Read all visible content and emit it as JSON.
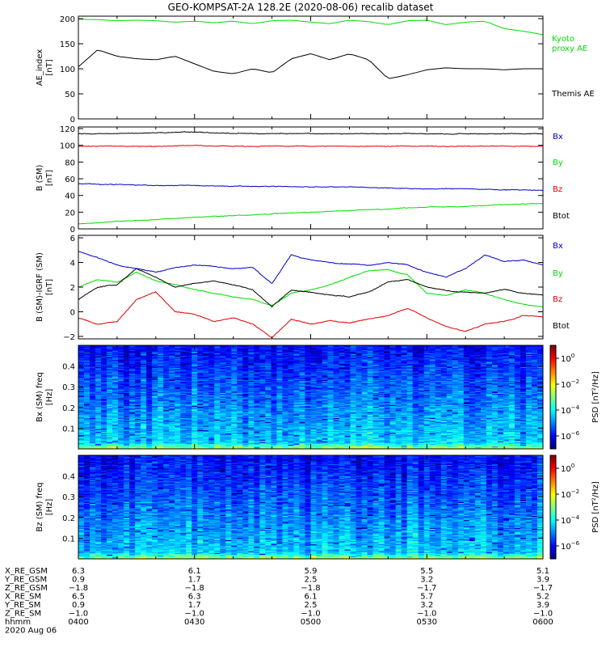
{
  "title": "GEO-KOMPSAT-2A 128.2E (2020-08-06) recalib dataset",
  "chart_data": [
    {
      "type": "line",
      "name": "ae",
      "ylabel": "AE_index [nT]",
      "ylim": [
        0,
        205
      ],
      "yticks": [
        "0",
        "50",
        "100",
        "150",
        "200"
      ],
      "yticks_v": [
        0,
        50,
        100,
        150,
        200
      ],
      "x": [
        0,
        5,
        10,
        15,
        20,
        25,
        30,
        35,
        40,
        45,
        50,
        55,
        60,
        65,
        70,
        75,
        80,
        85,
        90,
        95,
        100,
        105,
        110,
        115,
        120
      ],
      "series": [
        {
          "name": "Kyoto proxy AE",
          "legend": [
            "Kyoto",
            "proxy AE"
          ],
          "color": "#00dd00",
          "values": [
            199,
            198,
            196,
            197,
            196,
            193,
            195,
            192,
            195,
            190,
            196,
            197,
            193,
            190,
            197,
            194,
            188,
            196,
            197,
            188,
            193,
            195,
            180,
            175,
            168
          ]
        },
        {
          "name": "Themis AE",
          "legend": [
            "Themis AE"
          ],
          "color": "#000000",
          "values": [
            104,
            138,
            125,
            120,
            118,
            125,
            110,
            95,
            90,
            100,
            92,
            120,
            130,
            118,
            130,
            118,
            80,
            88,
            98,
            102,
            100,
            100,
            98,
            100,
            100
          ]
        }
      ]
    },
    {
      "type": "line",
      "name": "b",
      "ylabel": "B (SM) [nT]",
      "ylim": [
        0,
        122
      ],
      "yticks": [
        "0",
        "20",
        "40",
        "60",
        "80",
        "100",
        "120"
      ],
      "yticks_v": [
        0,
        20,
        40,
        60,
        80,
        100,
        120
      ],
      "x": [
        0,
        10,
        20,
        30,
        40,
        50,
        60,
        70,
        80,
        90,
        100,
        110,
        120
      ],
      "series": [
        {
          "name": "Bx",
          "color": "#0000cc",
          "values": [
            54,
            53,
            52,
            52,
            51,
            51,
            50,
            50,
            49,
            48,
            48,
            47,
            46
          ]
        },
        {
          "name": "By",
          "color": "#00dd00",
          "values": [
            6,
            9,
            11,
            14,
            16,
            18,
            20,
            22,
            24,
            26,
            27,
            29,
            30
          ]
        },
        {
          "name": "Bz",
          "color": "#dd0000",
          "values": [
            99,
            99,
            99,
            100,
            99,
            99,
            99,
            99,
            99,
            99,
            99,
            99,
            99
          ]
        },
        {
          "name": "Btot",
          "color": "#000000",
          "values": [
            114,
            114,
            115,
            116,
            114,
            114,
            114,
            114,
            114,
            114,
            114,
            114,
            114
          ]
        }
      ]
    },
    {
      "type": "line",
      "name": "db",
      "ylabel": "B (SM)-IGRF (SM) [nT]",
      "ylim": [
        -2.2,
        6.2
      ],
      "yticks": [
        "−2",
        "0",
        "2",
        "4",
        "6"
      ],
      "yticks_v": [
        -2,
        0,
        2,
        4,
        6
      ],
      "x": [
        0,
        5,
        10,
        15,
        20,
        25,
        30,
        35,
        40,
        45,
        50,
        55,
        60,
        65,
        70,
        75,
        80,
        85,
        90,
        95,
        100,
        105,
        110,
        115,
        120
      ],
      "series": [
        {
          "name": "Bx",
          "color": "#0000cc",
          "values": [
            4.9,
            4.4,
            3.8,
            3.5,
            3.2,
            3.6,
            3.8,
            3.7,
            3.5,
            3.6,
            2.3,
            4.6,
            4.2,
            4.0,
            3.9,
            3.8,
            4.0,
            3.8,
            3.2,
            2.8,
            3.5,
            4.6,
            4.1,
            4.2,
            3.8
          ]
        },
        {
          "name": "By",
          "color": "#00dd00",
          "values": [
            2.0,
            2.6,
            2.4,
            3.2,
            2.5,
            2.2,
            1.8,
            1.5,
            1.2,
            1.0,
            0.5,
            1.5,
            1.8,
            2.2,
            2.8,
            3.3,
            3.4,
            3.0,
            1.5,
            1.3,
            1.8,
            1.5,
            1.0,
            0.6,
            0.4
          ]
        },
        {
          "name": "Bz",
          "color": "#dd0000",
          "values": [
            -0.5,
            -1.0,
            -0.8,
            1.0,
            1.6,
            0.0,
            -0.2,
            -0.8,
            -0.5,
            -1.0,
            -2.1,
            -0.6,
            -1.0,
            -0.7,
            -0.9,
            -0.6,
            -0.3,
            0.3,
            -0.5,
            -1.2,
            -1.6,
            -1.0,
            -0.8,
            -0.3,
            -0.4
          ]
        },
        {
          "name": "Btot",
          "color": "#000000",
          "values": [
            1.0,
            2.0,
            2.2,
            3.5,
            2.8,
            2.0,
            2.3,
            2.5,
            2.2,
            1.8,
            0.4,
            1.8,
            1.6,
            1.4,
            1.2,
            1.6,
            2.4,
            2.6,
            2.0,
            1.7,
            1.6,
            1.5,
            1.8,
            1.5,
            1.4
          ]
        }
      ]
    },
    {
      "type": "heatmap",
      "name": "bxspec",
      "ylabel": "Bx (SM) freq [Hz]",
      "ylim": [
        0,
        0.5
      ],
      "yticks": [
        "0.1",
        "0.2",
        "0.3",
        "0.4"
      ],
      "yticks_v": [
        0.1,
        0.2,
        0.3,
        0.4
      ],
      "colorbar_label": "PSD [nT²/Hz]",
      "colorbar_ticks": [
        {
          "base": "10",
          "exp": "0",
          "v": 0
        },
        {
          "base": "10",
          "exp": "−2",
          "v": -2
        },
        {
          "base": "10",
          "exp": "−4",
          "v": -4
        },
        {
          "base": "10",
          "exp": "−6",
          "v": -6
        }
      ],
      "colorbar_range": [
        -7,
        1
      ]
    },
    {
      "type": "heatmap",
      "name": "bzspec",
      "ylabel": "Bz (SM) freq [Hz]",
      "ylim": [
        0,
        0.5
      ],
      "yticks": [
        "0.1",
        "0.2",
        "0.3",
        "0.4"
      ],
      "yticks_v": [
        0.1,
        0.2,
        0.3,
        0.4
      ],
      "colorbar_label": "PSD [nT²/Hz]",
      "colorbar_ticks": [
        {
          "base": "10",
          "exp": "0",
          "v": 0
        },
        {
          "base": "10",
          "exp": "−2",
          "v": -2
        },
        {
          "base": "10",
          "exp": "−4",
          "v": -4
        },
        {
          "base": "10",
          "exp": "−6",
          "v": -6
        }
      ],
      "colorbar_range": [
        -7,
        1
      ]
    }
  ],
  "x_axis": {
    "xlim": [
      0,
      120
    ],
    "tick_minutes": [
      0,
      30,
      60,
      90,
      120
    ],
    "ephemeris_rows": [
      {
        "label": "X_RE_GSM",
        "values": [
          "6.3",
          "6.1",
          "5.9",
          "5.5",
          "5.1"
        ]
      },
      {
        "label": "Y_RE_GSM",
        "values": [
          "0.9",
          "1.7",
          "2.5",
          "3.2",
          "3.9"
        ]
      },
      {
        "label": "Z_RE_GSM",
        "values": [
          "−1.8",
          "−1.8",
          "−1.8",
          "−1.7",
          "−1.7"
        ]
      },
      {
        "label": "X_RE_SM",
        "values": [
          "6.5",
          "6.3",
          "6.1",
          "5.7",
          "5.2"
        ]
      },
      {
        "label": "Y_RE_SM",
        "values": [
          "0.9",
          "1.7",
          "2.5",
          "3.2",
          "3.9"
        ]
      },
      {
        "label": "Z_RE_SM",
        "values": [
          "−1.0",
          "−1.0",
          "−1.0",
          "−1.0",
          "−1.0"
        ]
      },
      {
        "label": "hhmm",
        "values": [
          "0400",
          "0430",
          "0500",
          "0530",
          "0600"
        ]
      }
    ],
    "date_label": "2020 Aug 06"
  }
}
